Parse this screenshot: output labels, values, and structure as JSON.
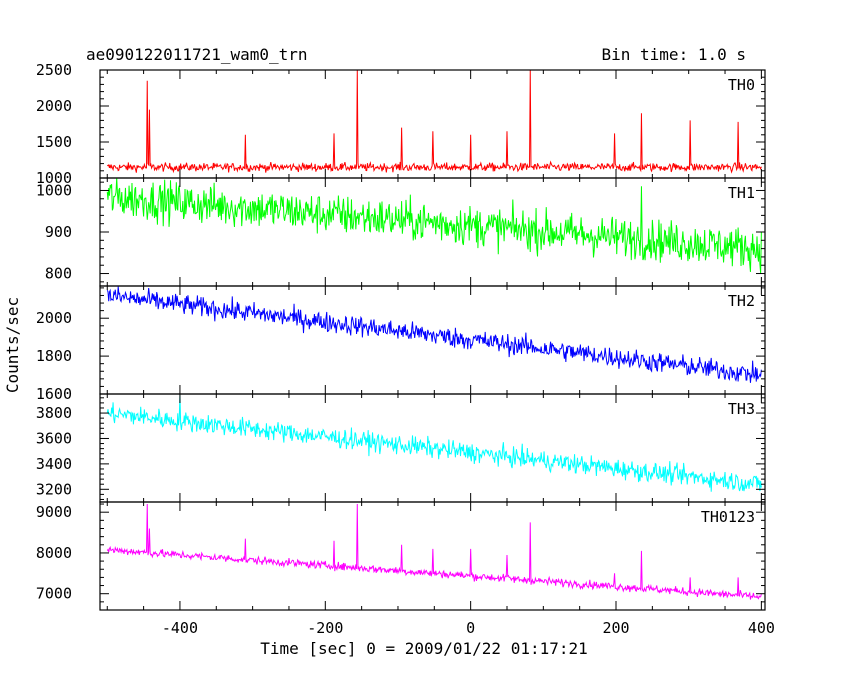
{
  "header": {
    "title": "ae090122011721_wam0_trn",
    "bin_time": "Bin time: 1.0 s"
  },
  "chart_data": {
    "type": "line",
    "xlabel": "Time [sec] 0 = 2009/01/22 01:17:21",
    "ylabel": "Counts/sec",
    "xlim": [
      -510,
      405
    ],
    "x_ticks": [
      -400,
      -200,
      0,
      200,
      400
    ],
    "grid": false,
    "panels": [
      {
        "name": "TH0",
        "color": "#ff0000",
        "ylim": [
          1000,
          2500
        ],
        "y_ticks": [
          1000,
          1500,
          2000,
          2500
        ],
        "trend": [
          [
            -500,
            1150
          ],
          [
            400,
            1150
          ]
        ],
        "noise": 45,
        "spikes": [
          [
            -445,
            2350
          ],
          [
            -442,
            1950
          ],
          [
            -310,
            1600
          ],
          [
            -188,
            1620
          ],
          [
            -156,
            2500
          ],
          [
            -95,
            1700
          ],
          [
            -52,
            1650
          ],
          [
            0,
            1600
          ],
          [
            50,
            1650
          ],
          [
            82,
            2500
          ],
          [
            198,
            1620
          ],
          [
            235,
            1900
          ],
          [
            302,
            1800
          ],
          [
            368,
            1780
          ]
        ]
      },
      {
        "name": "TH1",
        "color": "#00ff00",
        "ylim": [
          770,
          1030
        ],
        "y_ticks": [
          800,
          900,
          1000
        ],
        "trend": [
          [
            -500,
            985
          ],
          [
            400,
            860
          ]
        ],
        "noise": 38,
        "spikes": [
          [
            235,
            1010
          ]
        ]
      },
      {
        "name": "TH2",
        "color": "#0000ff",
        "ylim": [
          1600,
          2170
        ],
        "y_ticks": [
          1600,
          1800,
          2000
        ],
        "trend": [
          [
            -500,
            2120
          ],
          [
            400,
            1700
          ]
        ],
        "noise": 42,
        "spikes": []
      },
      {
        "name": "TH3",
        "color": "#00ffff",
        "ylim": [
          3100,
          3950
        ],
        "y_ticks": [
          3200,
          3400,
          3600,
          3800
        ],
        "trend": [
          [
            -500,
            3800
          ],
          [
            400,
            3240
          ]
        ],
        "noise": 60,
        "spikes": [
          [
            -400,
            3940
          ]
        ]
      },
      {
        "name": "TH0123",
        "color": "#ff00ff",
        "ylim": [
          6600,
          9250
        ],
        "y_ticks": [
          7000,
          8000,
          9000
        ],
        "trend": [
          [
            -500,
            8080
          ],
          [
            400,
            6920
          ]
        ],
        "noise": 75,
        "spikes": [
          [
            -445,
            9200
          ],
          [
            -442,
            8600
          ],
          [
            -310,
            8350
          ],
          [
            -188,
            8300
          ],
          [
            -156,
            9200
          ],
          [
            -95,
            8200
          ],
          [
            -52,
            8100
          ],
          [
            0,
            8100
          ],
          [
            50,
            7950
          ],
          [
            82,
            8750
          ],
          [
            198,
            7500
          ],
          [
            235,
            8050
          ],
          [
            302,
            7400
          ],
          [
            368,
            7400
          ]
        ]
      }
    ]
  }
}
